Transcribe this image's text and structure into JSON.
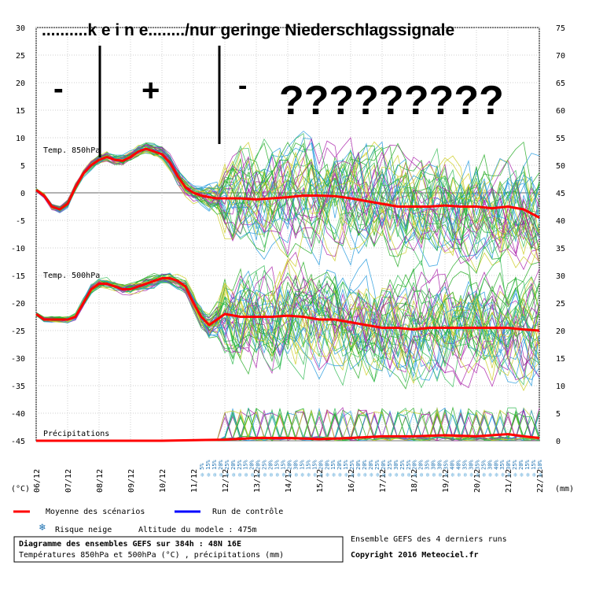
{
  "chart_data": {
    "type": "line",
    "title": "Diagramme des ensembles GEFS sur 384h : 48N 16E",
    "subtitle": "Températures 850hPa et 500hPa (°C) , précipitations (mm)",
    "left_unit": "(°C)",
    "right_unit": "(mm)",
    "left_ticks": [
      30,
      25,
      20,
      15,
      10,
      5,
      0,
      -5,
      -10,
      -15,
      -20,
      -25,
      -30,
      -35,
      -40,
      -45
    ],
    "right_ticks": [
      75,
      70,
      65,
      60,
      55,
      50,
      45,
      40,
      35,
      30,
      25,
      20,
      15,
      10,
      5,
      0
    ],
    "ylim": [
      -45,
      30
    ],
    "ylim_right": [
      0,
      75
    ],
    "x_ticks": [
      "06/12",
      "07/12",
      "08/12",
      "09/12",
      "10/12",
      "11/12",
      "12/12",
      "13/12",
      "14/12",
      "15/12",
      "16/12",
      "17/12",
      "18/12",
      "19/12",
      "20/12",
      "21/12",
      "22/12"
    ],
    "x_hours": [
      0,
      24,
      48,
      72,
      96,
      120,
      144,
      168,
      192,
      216,
      240,
      264,
      288,
      312,
      336,
      360,
      384
    ],
    "panel_labels": {
      "t850": "Temp. 850hPa",
      "t500": "Temp. 500hPa",
      "precip": "Précipitations"
    },
    "series": [
      {
        "name": "Moyenne des scénarios",
        "panel": "Temp. 850hPa",
        "x": [
          0,
          6,
          12,
          18,
          24,
          30,
          36,
          42,
          48,
          54,
          60,
          66,
          72,
          78,
          84,
          90,
          96,
          102,
          108,
          114,
          120,
          126,
          132,
          138,
          144,
          156,
          168,
          180,
          192,
          204,
          216,
          228,
          240,
          252,
          264,
          276,
          288,
          300,
          312,
          324,
          336,
          348,
          360,
          372,
          384
        ],
        "y": [
          0.5,
          -0.5,
          -2.5,
          -3.0,
          -2.0,
          1.0,
          3.5,
          5.0,
          6.0,
          6.5,
          6.0,
          5.8,
          6.5,
          7.5,
          8.0,
          7.5,
          7.0,
          5.5,
          3.0,
          1.0,
          0.0,
          -0.5,
          -0.8,
          -1.0,
          -1.0,
          -1.0,
          -1.2,
          -1.0,
          -0.8,
          -0.5,
          -0.5,
          -0.6,
          -1.0,
          -1.5,
          -2.0,
          -2.5,
          -2.5,
          -2.5,
          -2.3,
          -2.5,
          -2.5,
          -2.8,
          -2.5,
          -3.0,
          -4.5
        ]
      },
      {
        "name": "Moyenne des scénarios",
        "panel": "Temp. 500hPa",
        "x": [
          0,
          6,
          12,
          18,
          24,
          30,
          36,
          42,
          48,
          54,
          60,
          66,
          72,
          78,
          84,
          90,
          96,
          102,
          108,
          114,
          120,
          126,
          132,
          138,
          144,
          156,
          168,
          180,
          192,
          204,
          216,
          228,
          240,
          252,
          264,
          276,
          288,
          300,
          312,
          324,
          336,
          348,
          360,
          372,
          384
        ],
        "y": [
          -22.0,
          -23.0,
          -23.0,
          -23.0,
          -23.0,
          -22.5,
          -20.0,
          -17.5,
          -16.5,
          -16.5,
          -17.0,
          -17.5,
          -17.5,
          -17.0,
          -16.5,
          -16.0,
          -15.5,
          -15.5,
          -16.0,
          -17.0,
          -20.0,
          -22.5,
          -24.0,
          -23.0,
          -22.0,
          -22.5,
          -22.5,
          -22.5,
          -22.3,
          -22.5,
          -23.0,
          -23.0,
          -23.5,
          -24.0,
          -24.5,
          -24.5,
          -24.8,
          -24.5,
          -24.5,
          -24.5,
          -24.5,
          -24.5,
          -24.5,
          -24.8,
          -25.0
        ]
      },
      {
        "name": "Moyenne des scénarios",
        "panel": "Précipitations",
        "axis": "right",
        "x": [
          0,
          48,
          96,
          144,
          168,
          192,
          216,
          240,
          264,
          288,
          312,
          336,
          360,
          372,
          384
        ],
        "y": [
          0,
          0,
          0,
          0.2,
          0.5,
          0.5,
          0.3,
          0.5,
          0.8,
          0.8,
          1.0,
          0.8,
          1.2,
          0.8,
          0.5
        ]
      }
    ],
    "legend": [
      {
        "label": "Moyenne des scénarios",
        "color": "#ff0000"
      },
      {
        "label": "Run de contrôle",
        "color": "#0000ff"
      }
    ],
    "snow_label": "Risque neige",
    "altitude": "Altitude du modele : 475m",
    "snow_risk_percent": [
      "5%",
      "15%",
      "15%",
      "20%",
      "25%",
      "20%",
      "25%",
      "15%",
      "20%",
      "20%",
      "25%",
      "20%",
      "15%",
      "15%",
      "20%",
      "30%",
      "15%",
      "15%",
      "15%",
      "20%",
      "20%",
      "15%",
      "20%",
      "15%",
      "25%",
      "20%",
      "20%",
      "20%",
      "25%",
      "20%",
      "25%",
      "30%",
      "25%",
      "25%",
      "20%",
      "20%",
      "35%",
      "30%",
      "30%",
      "35%",
      "40%",
      "40%",
      "35%",
      "30%",
      "35%",
      "25%",
      "30%",
      "40%",
      "35%",
      "30%",
      "25%",
      "20%",
      "15%",
      "15%",
      "10%"
    ],
    "footer_right_1": "Ensemble GEFS des 4 derniers runs",
    "footer_right_2": "Copyright 2016 Meteociel.fr",
    "grid": true,
    "legend_position": "bottom-left"
  },
  "annotations": {
    "headline": "..........k e i n e......../nur geringe Niederschlagssignale",
    "signs": [
      "-",
      "+",
      "-"
    ],
    "questions": "?????????"
  },
  "colors": {
    "mean": "#ff0000",
    "control": "#0000ff",
    "members": [
      "#22aa22",
      "#2299dd",
      "#aa22aa",
      "#cccc22",
      "#33bb55"
    ]
  }
}
